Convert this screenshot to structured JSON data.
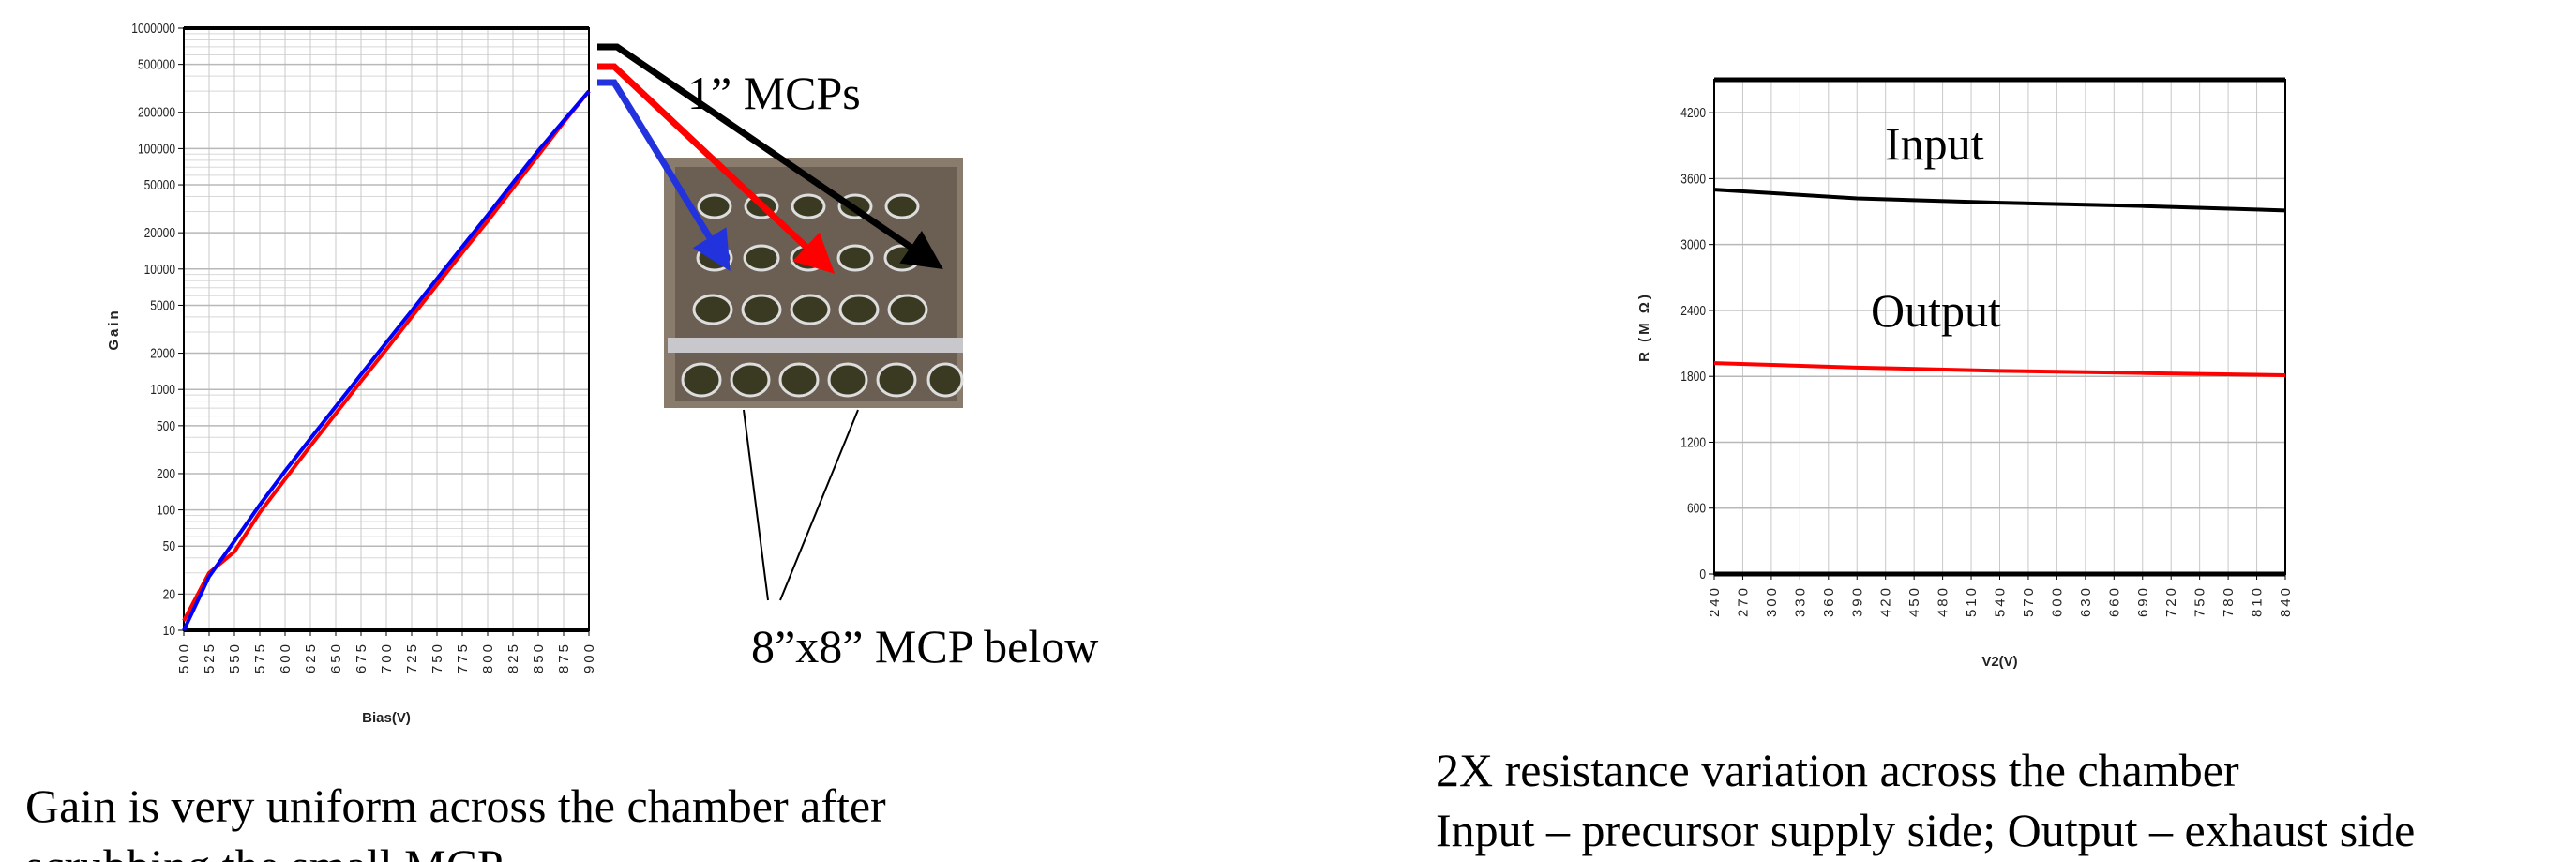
{
  "chart_data": [
    {
      "type": "line",
      "x_label": "Bias(V)",
      "y_label": "Gain",
      "log_y": true,
      "grid": true,
      "x": [
        500,
        525,
        550,
        575,
        600,
        625,
        650,
        675,
        700,
        725,
        750,
        775,
        800,
        825,
        850,
        875,
        900
      ],
      "xlim": [
        500,
        900
      ],
      "xticks": [
        500,
        525,
        550,
        575,
        600,
        625,
        650,
        675,
        700,
        725,
        750,
        775,
        800,
        825,
        850,
        875,
        900
      ],
      "ylim": [
        10,
        1000000
      ],
      "yticks": [
        10,
        20,
        50,
        100,
        200,
        500,
        1000,
        2000,
        5000,
        10000,
        20000,
        50000,
        100000,
        200000,
        500000,
        1000000
      ],
      "series": [
        {
          "color": "#ff0000",
          "values": [
            12,
            30,
            45,
            95,
            180,
            340,
            630,
            1170,
            2150,
            4000,
            7400,
            13700,
            25000,
            47000,
            88000,
            165000,
            300000
          ]
        },
        {
          "color": "#0000ff",
          "values": [
            10,
            28,
            55,
            110,
            210,
            390,
            720,
            1330,
            2450,
            4500,
            8300,
            15300,
            28000,
            52000,
            96000,
            170000,
            300000
          ]
        }
      ]
    },
    {
      "type": "line",
      "x_label": "V2(V)",
      "y_label": "R (M Ω)",
      "log_y": false,
      "grid": true,
      "x": [
        240,
        390,
        540,
        690,
        840
      ],
      "xlim": [
        240,
        840
      ],
      "xticks": [
        240,
        270,
        300,
        330,
        360,
        390,
        420,
        450,
        480,
        510,
        540,
        570,
        600,
        630,
        660,
        690,
        720,
        750,
        780,
        810,
        840
      ],
      "ylim": [
        0,
        4500
      ],
      "yticks": [
        0,
        600,
        1200,
        1800,
        2400,
        3000,
        3600,
        4200
      ],
      "series": [
        {
          "name": "Input",
          "color": "#000000",
          "values": [
            3500,
            3420,
            3380,
            3350,
            3310
          ]
        },
        {
          "name": "Output",
          "color": "#ff0000",
          "values": [
            1920,
            1880,
            1850,
            1830,
            1810
          ]
        }
      ]
    }
  ],
  "callouts": [
    "1” MCPs",
    "8”x8” MCP below"
  ],
  "captions": {
    "left": [
      "Gain is very uniform across the chamber after",
      "scrubbing the small MCP"
    ],
    "right": [
      "2X resistance variation across the chamber",
      "Input – precursor supply side; Output – exhaust side"
    ]
  }
}
